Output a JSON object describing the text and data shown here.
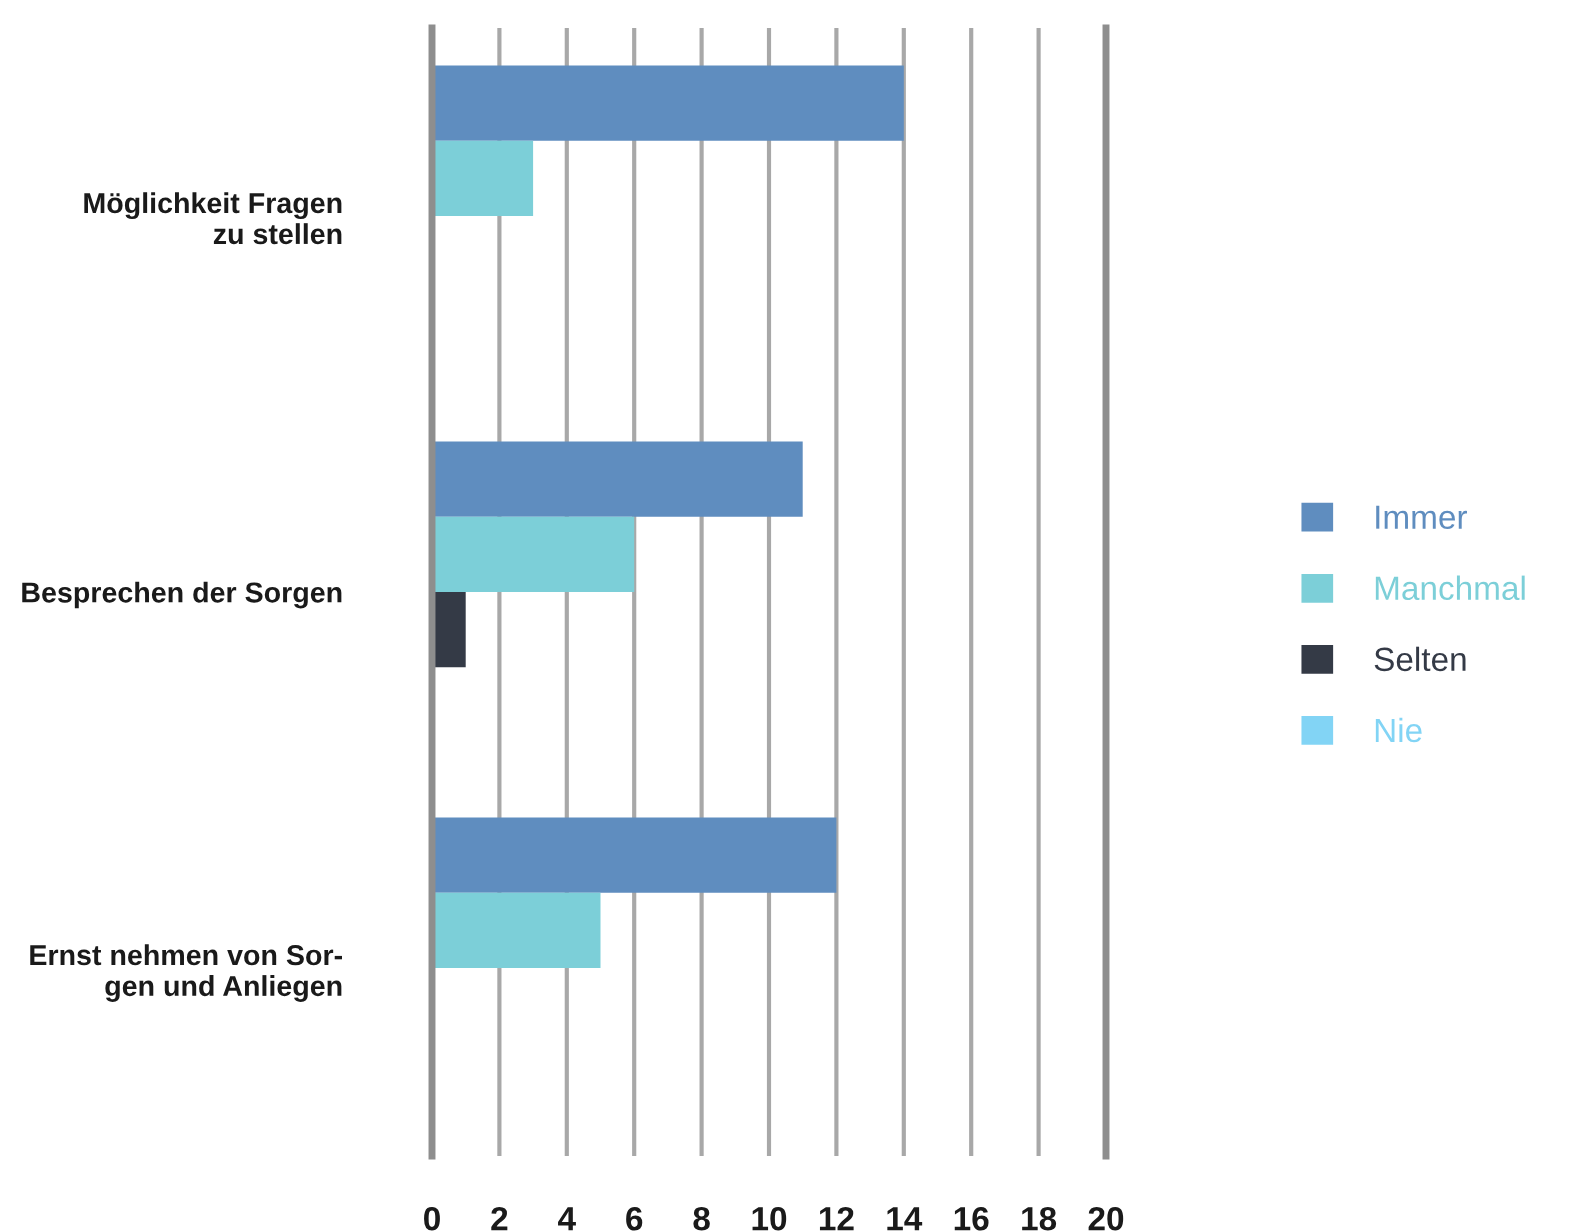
{
  "chart_data": {
    "type": "bar",
    "orientation": "horizontal",
    "categories": [
      "Möglichkeit Fragen\nzu stellen",
      "Besprechen der Sorgen",
      "Ernst nehmen von Sor-\ngen und Anliegen"
    ],
    "series": [
      {
        "name": "Immer",
        "color": "#5f8dbf",
        "values": [
          14,
          11,
          12
        ]
      },
      {
        "name": "Manchmal",
        "color": "#7ccfd8",
        "values": [
          3,
          6,
          5
        ]
      },
      {
        "name": "Selten",
        "color": "#343a46",
        "values": [
          0,
          1,
          0
        ]
      },
      {
        "name": "Nie",
        "color": "#82d4f5",
        "values": [
          0,
          0,
          0
        ]
      }
    ],
    "xlim": [
      0,
      20
    ],
    "xticks": [
      0,
      2,
      4,
      6,
      8,
      10,
      12,
      14,
      16,
      18,
      20
    ],
    "grid": "x",
    "legend": "right"
  }
}
